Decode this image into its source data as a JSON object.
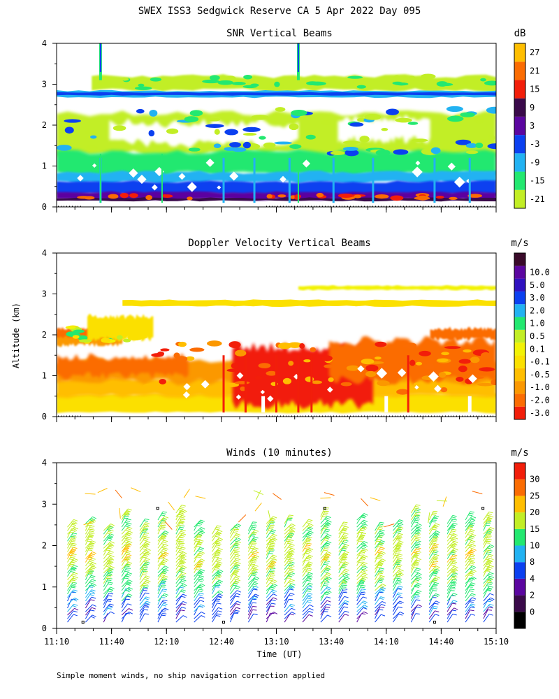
{
  "title": "SWEX ISS3 Sedgwick Reserve CA   5 Apr 2022 Day 095",
  "footnote": "Simple moment winds, no ship navigation correction applied",
  "xlabel": "Time (UT)",
  "ylabel": "Altitude (km)",
  "chart_data": [
    {
      "type": "heatmap",
      "title": "SNR Vertical Beams",
      "xlabel": "Time (UT)",
      "ylabel": "Altitude (km)",
      "x_ticks": [
        "11:10",
        "11:40",
        "12:10",
        "12:40",
        "13:10",
        "13:40",
        "14:10",
        "14:40",
        "15:10"
      ],
      "y_ticks": [
        0,
        1,
        2,
        3,
        4
      ],
      "xlim": [
        "11:10",
        "15:10"
      ],
      "ylim": [
        0,
        4
      ],
      "colorbar": {
        "unit": "dB",
        "labels": [
          -21,
          -15,
          -9,
          -3,
          3,
          9,
          15,
          21,
          27
        ],
        "colors": [
          "#c2ee25",
          "#23e870",
          "#22b2f2",
          "#0b40f0",
          "#5b06a0",
          "#3a0a4a",
          "#f21e0a",
          "#fb6c02",
          "#ffbe00"
        ]
      },
      "layers": [
        {
          "alt_min": 0.15,
          "alt_max": 0.3,
          "snr_db": "15 to 27"
        },
        {
          "alt_min": 0.3,
          "alt_max": 0.6,
          "snr_db": "3 to 9"
        },
        {
          "alt_min": 0.6,
          "alt_max": 0.8,
          "snr_db": "-9 to -3"
        },
        {
          "alt_min": 0.8,
          "alt_max": 1.3,
          "snr_db": "-15 to -9"
        },
        {
          "alt_min": 1.3,
          "alt_max": 2.3,
          "snr_db": "-21 to -15 (patchy)"
        },
        {
          "alt_min": 2.7,
          "alt_max": 2.85,
          "snr_db": "-3 to 3 (persistent layer)"
        },
        {
          "alt_min": 2.85,
          "alt_max": 3.2,
          "snr_db": "-21 to -15 (patchy)"
        }
      ]
    },
    {
      "type": "heatmap",
      "title": "Doppler Velocity Vertical Beams",
      "xlabel": "Time (UT)",
      "ylabel": "Altitude (km)",
      "x_ticks": [
        "11:10",
        "11:40",
        "12:10",
        "12:40",
        "13:10",
        "13:40",
        "14:10",
        "14:40",
        "15:10"
      ],
      "y_ticks": [
        0,
        1,
        2,
        3,
        4
      ],
      "ylim": [
        0,
        4
      ],
      "colorbar": {
        "unit": "m/s",
        "labels": [
          "-3.0",
          "-2.0",
          "-1.0",
          "-0.5",
          "-0.1",
          "0.1",
          "0.5",
          "1.0",
          "2.0",
          "3.0",
          "5.0",
          "10.0"
        ],
        "colors": [
          "#f21e0a",
          "#fb6c02",
          "#fb9800",
          "#ffbe00",
          "#fbe000",
          "#f2f205",
          "#c2ee25",
          "#23e870",
          "#22b2f2",
          "#0b40f0",
          "#3012c0",
          "#5b06a0",
          "#3a0a2a"
        ]
      },
      "layers": [
        {
          "alt_min": 0.1,
          "alt_max": 0.55,
          "velocity_ms": "-0.1 to 0.1"
        },
        {
          "alt_min": 0.55,
          "alt_max": 1.3,
          "velocity_ms": "-1.0 to -0.1"
        },
        {
          "alt_min": 1.3,
          "alt_max": 2.1,
          "velocity_ms": "-3.0 to -0.5 (patchy)"
        },
        {
          "alt_min": 2.7,
          "alt_max": 2.85,
          "velocity_ms": "-0.1 to 0.1"
        }
      ]
    },
    {
      "type": "scatter",
      "title": "Winds (10 minutes)",
      "subtype": "wind barbs",
      "xlabel": "Time (UT)",
      "ylabel": "Altitude (km)",
      "x_ticks": [
        "11:10",
        "11:40",
        "12:10",
        "12:40",
        "13:10",
        "13:40",
        "14:10",
        "14:40",
        "15:10"
      ],
      "y_ticks": [
        0,
        1,
        2,
        3,
        4
      ],
      "ylim": [
        0,
        4
      ],
      "colorbar": {
        "unit": "m/s",
        "labels": [
          0,
          2,
          4,
          8,
          10,
          15,
          20,
          25,
          30
        ],
        "colors": [
          "#000000",
          "#3a0a4a",
          "#5b06a0",
          "#0b40f0",
          "#22b2f2",
          "#23e870",
          "#c2ee25",
          "#ffbe00",
          "#fb6c02",
          "#f21e0a"
        ]
      },
      "profile_interval_minutes": 10,
      "speed_profile": [
        {
          "alt_km": 0.2,
          "speed_ms": 5
        },
        {
          "alt_km": 0.6,
          "speed_ms": 7
        },
        {
          "alt_km": 1.0,
          "speed_ms": 14
        },
        {
          "alt_km": 1.5,
          "speed_ms": 18
        },
        {
          "alt_km": 2.0,
          "speed_ms": 17
        },
        {
          "alt_km": 2.5,
          "speed_ms": 14
        },
        {
          "alt_km": 3.0,
          "speed_ms": 22
        }
      ]
    }
  ]
}
